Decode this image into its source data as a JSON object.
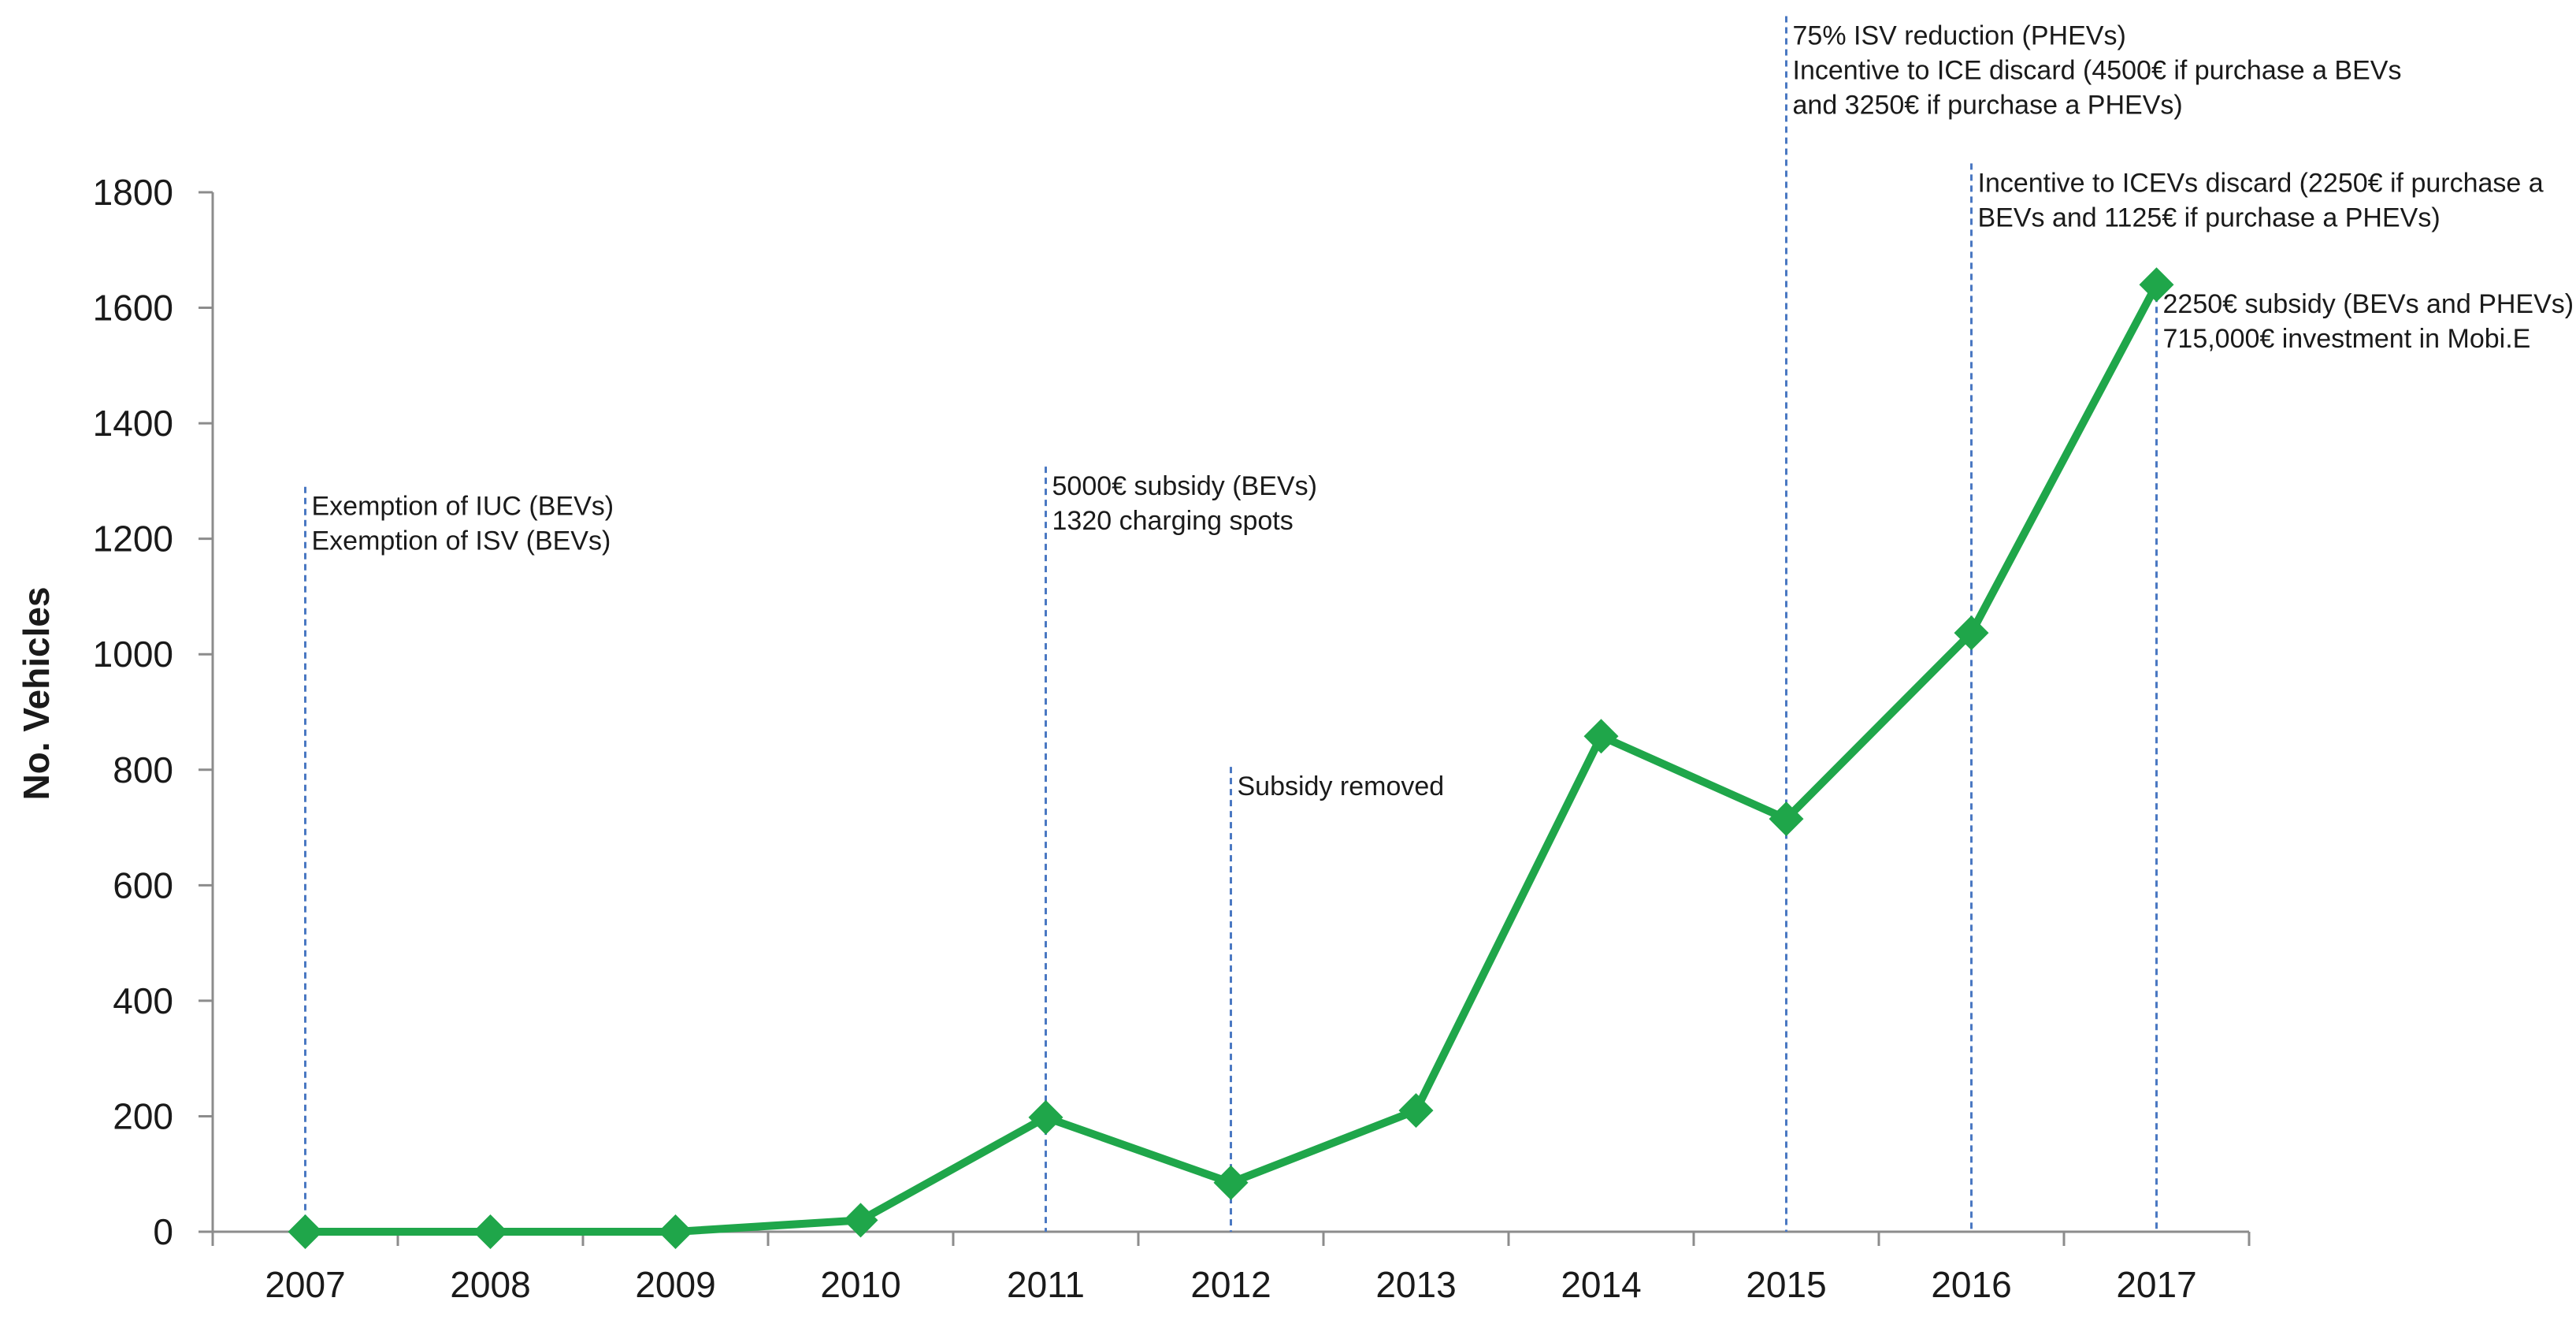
{
  "chart_data": {
    "type": "line",
    "title": "",
    "xlabel": "",
    "ylabel": "No. Vehicles",
    "categories": [
      "2007",
      "2008",
      "2009",
      "2010",
      "2011",
      "2012",
      "2013",
      "2014",
      "2015",
      "2016",
      "2017"
    ],
    "series": [
      {
        "values": [
          0,
          0,
          0,
          20,
          198,
          85,
          210,
          858,
          715,
          1037,
          1640
        ]
      }
    ],
    "ylim": [
      0,
      1800
    ],
    "yticks": [
      0,
      200,
      400,
      600,
      800,
      1000,
      1200,
      1400,
      1600,
      1800
    ],
    "grid": false,
    "legend": "none",
    "series_color": "#1fa64a",
    "annotation_line_color": "#4a78c2",
    "annotations": [
      {
        "x": "2007",
        "y_top": 1290,
        "lines": [
          "Exemption of IUC (BEVs)",
          "Exemption of ISV  (BEVs)"
        ]
      },
      {
        "x": "2011",
        "y_top": 1325,
        "lines": [
          "5000€ subsidy (BEVs)",
          "1320 charging spots"
        ]
      },
      {
        "x": "2012",
        "y_top": 805,
        "lines": [
          "Subsidy removed"
        ]
      },
      {
        "x": "2015",
        "y_top": 2105,
        "lines": [
          "75% ISV reduction (PHEVs)",
          "Incentive to  ICE discard (4500€ if purchase a BEVs",
          "and 3250€ if purchase a PHEVs)"
        ]
      },
      {
        "x": "2016",
        "y_top": 1850,
        "lines": [
          "Incentive to  ICEVs discard (2250€ if purchase a",
          "BEVs and 1125€ if purchase a PHEVs)"
        ]
      },
      {
        "x": "2017",
        "y_top": 1640,
        "lines": [
          "2250€  subsidy (BEVs and PHEVs)",
          "715,000€ investment in Mobi.E"
        ]
      }
    ]
  }
}
